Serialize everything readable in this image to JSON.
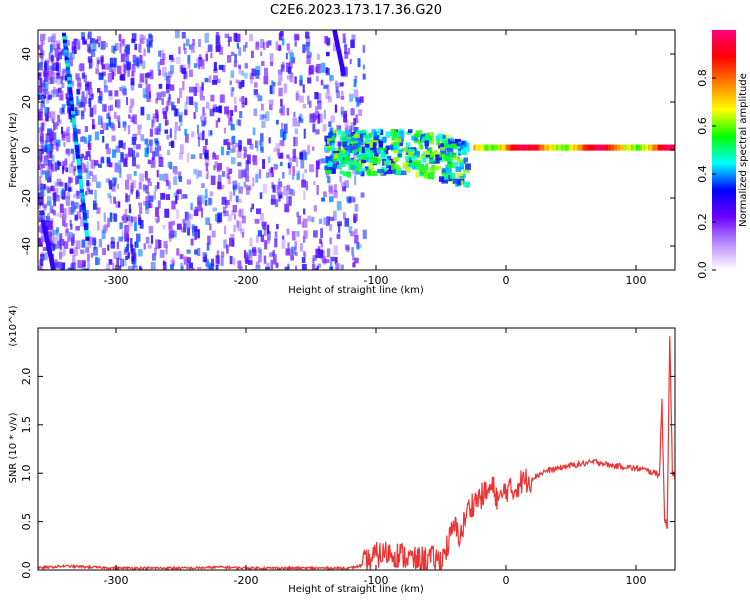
{
  "title": "C2E6.2023.173.17.36.G20",
  "chart_data": [
    {
      "type": "heatmap",
      "xlabel": "Height of straight line (km)",
      "ylabel": "Frequency (Hz)",
      "xlim": [
        -360,
        130
      ],
      "ylim": [
        -50,
        50
      ],
      "xticks": [
        -300,
        -200,
        -100,
        0,
        100
      ],
      "yticks": [
        -40,
        -20,
        0,
        20,
        40
      ],
      "colorbar": {
        "label": "Normalized spectral amplitude",
        "range": [
          0.0,
          1.0
        ],
        "ticks": [
          "0.0",
          "0.2",
          "0.4",
          "0.6",
          "0.8"
        ],
        "colors": [
          "#ffffff",
          "#b98cff",
          "#6a00ff",
          "#0000ff",
          "#00ffff",
          "#00ff00",
          "#ffff00",
          "#ff8000",
          "#ff0000",
          "#ff0080"
        ]
      },
      "features": {
        "diagonal_streaks": [
          {
            "x_start": -340,
            "y_start": 48,
            "x_end": -322,
            "y_end": -37
          },
          {
            "x_start": -356,
            "y_start": -30,
            "x_end": -348,
            "y_end": -50
          },
          {
            "x_start": -132,
            "y_start": 50,
            "x_end": -125,
            "y_end": 32
          }
        ],
        "carrier_line": {
          "x_start": -25,
          "x_end": 130,
          "frequency": 1
        }
      }
    },
    {
      "type": "line",
      "xlabel": "Height of straight line (km)",
      "ylabel": "SNR (10 * v/v)",
      "yexponent": "(x10^4)",
      "xlim": [
        -360,
        130
      ],
      "ylim": [
        0.0,
        2.5
      ],
      "xticks": [
        -300,
        -200,
        -100,
        0,
        100
      ],
      "yticks": [
        "0.0",
        "0.5",
        "1.0",
        "1.5",
        "2.0"
      ],
      "color": "#ee3333",
      "x": [
        -360,
        -340,
        -320,
        -300,
        -280,
        -260,
        -240,
        -220,
        -200,
        -180,
        -160,
        -140,
        -120,
        -110,
        -100,
        -90,
        -80,
        -70,
        -60,
        -50,
        -45,
        -40,
        -35,
        -30,
        -25,
        -20,
        -15,
        -10,
        -5,
        0,
        5,
        10,
        20,
        30,
        40,
        50,
        60,
        70,
        80,
        90,
        100,
        105,
        110,
        115,
        118,
        120,
        122,
        124,
        126,
        128,
        130
      ],
      "y": [
        0.02,
        0.04,
        0.03,
        0.02,
        0.02,
        0.02,
        0.02,
        0.03,
        0.02,
        0.02,
        0.02,
        0.02,
        0.02,
        0.05,
        0.15,
        0.18,
        0.15,
        0.1,
        0.12,
        0.1,
        0.25,
        0.45,
        0.35,
        0.6,
        0.7,
        0.75,
        0.8,
        0.85,
        0.7,
        0.85,
        0.8,
        0.9,
        0.95,
        1.02,
        1.05,
        1.08,
        1.1,
        1.12,
        1.08,
        1.07,
        1.05,
        1.04,
        1.02,
        1.0,
        1.0,
        1.75,
        0.5,
        0.45,
        2.45,
        1.0,
        0.98
      ]
    }
  ]
}
